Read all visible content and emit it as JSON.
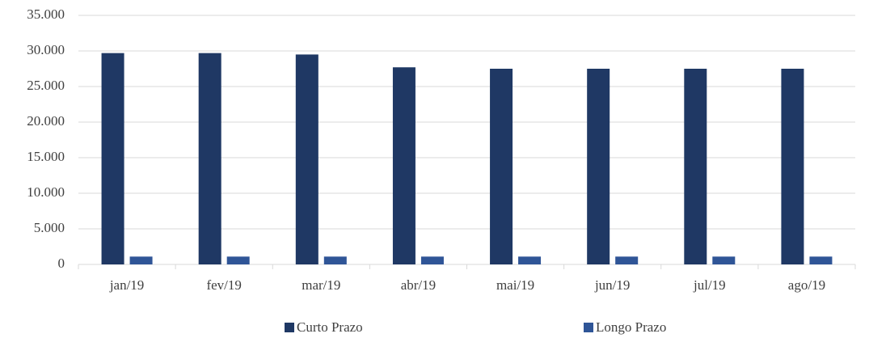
{
  "chart_data": {
    "type": "bar",
    "categories": [
      "jan/19",
      "fev/19",
      "mar/19",
      "abr/19",
      "mai/19",
      "jun/19",
      "jul/19",
      "ago/19"
    ],
    "series": [
      {
        "name": "Curto Prazo",
        "color": "#1f3864",
        "values": [
          29700,
          29700,
          29500,
          27700,
          27500,
          27500,
          27500,
          27500
        ]
      },
      {
        "name": "Longo Prazo",
        "color": "#2f5597",
        "values": [
          1100,
          1100,
          1100,
          1100,
          1100,
          1100,
          1100,
          1100
        ]
      }
    ],
    "ylim": [
      0,
      35000
    ],
    "yticks": [
      0,
      {
        "value": 5000,
        "label": "5.000"
      },
      {
        "value": 10000,
        "label": "10.000"
      },
      {
        "value": 15000,
        "label": "15.000"
      },
      {
        "value": 20000,
        "label": "20.000"
      },
      {
        "value": 25000,
        "label": "25.000"
      },
      {
        "value": 30000,
        "label": "30.000"
      },
      {
        "value": 35000,
        "label": "35.000"
      }
    ],
    "grid": true,
    "legend": "bottom"
  }
}
